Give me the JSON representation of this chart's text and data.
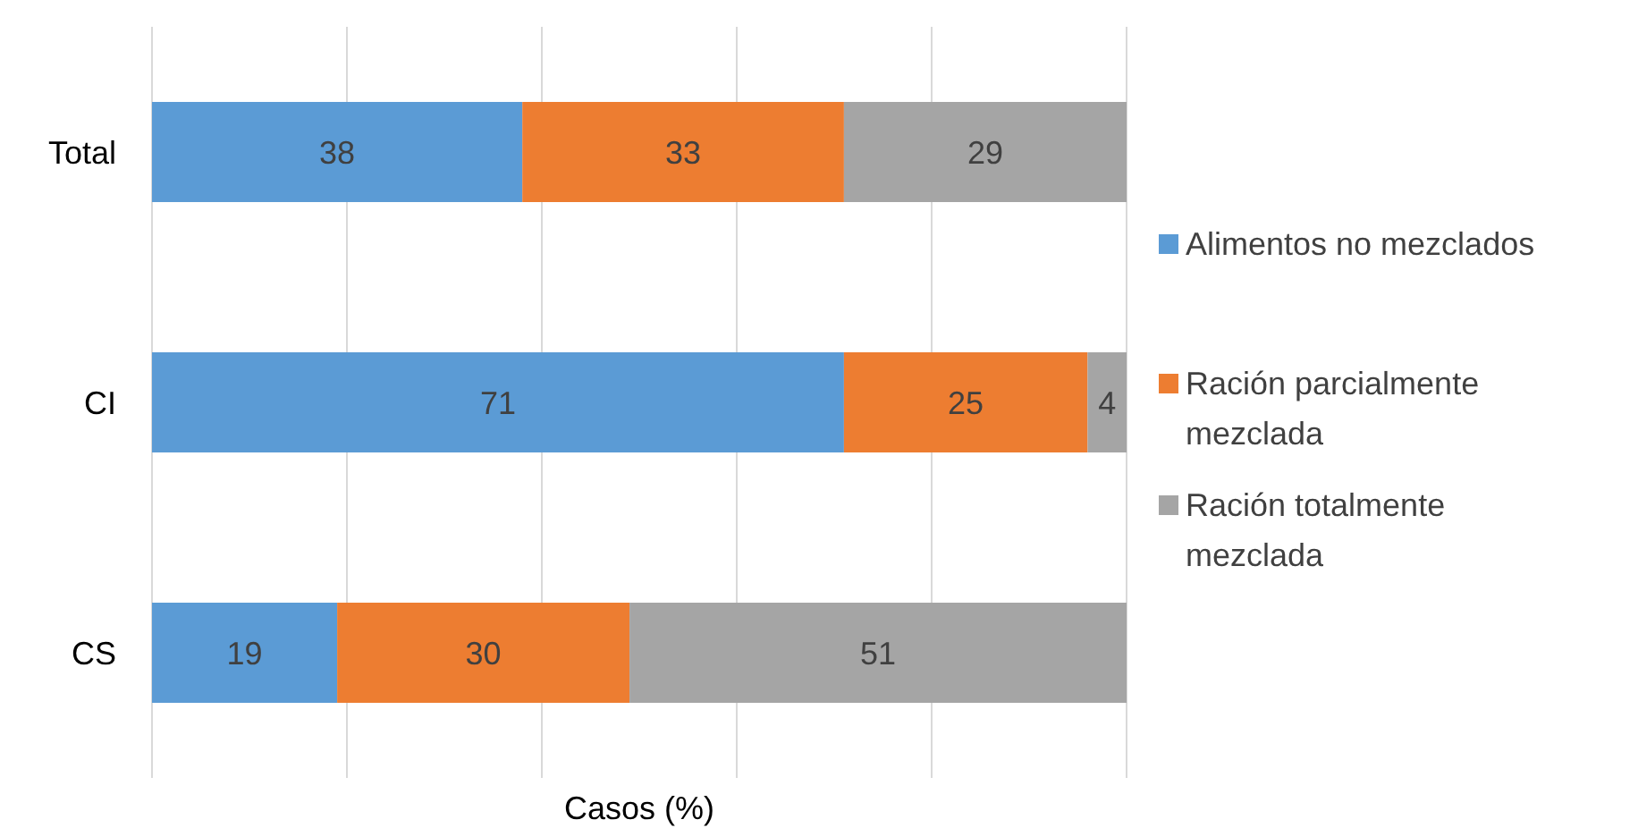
{
  "chart_data": {
    "type": "bar",
    "orientation": "horizontal",
    "stacked": true,
    "xlabel": "Casos (%)",
    "categories": [
      "Total",
      "CI",
      "CS"
    ],
    "series": [
      {
        "name": "Alimentos no mezclados",
        "color": "#5b9bd5",
        "values": [
          38,
          71,
          19
        ]
      },
      {
        "name": "Ración parcialmente mezclada",
        "color": "#ed7d31",
        "values": [
          33,
          25,
          30
        ]
      },
      {
        "name": "Ración totalmente mezclada",
        "color": "#a5a5a5",
        "values": [
          29,
          4,
          51
        ]
      }
    ],
    "xlim": [
      0,
      100
    ],
    "xticks": [
      {
        "value": 0,
        "label": null
      },
      {
        "value": 20,
        "label": null
      },
      {
        "value": 40,
        "label": null
      },
      {
        "value": 60,
        "label": null
      },
      {
        "value": 80,
        "label": null
      },
      {
        "value": 100,
        "label": null
      }
    ],
    "tick_labels": "y",
    "grid": "x",
    "legend": "right",
    "data_labels": true
  }
}
